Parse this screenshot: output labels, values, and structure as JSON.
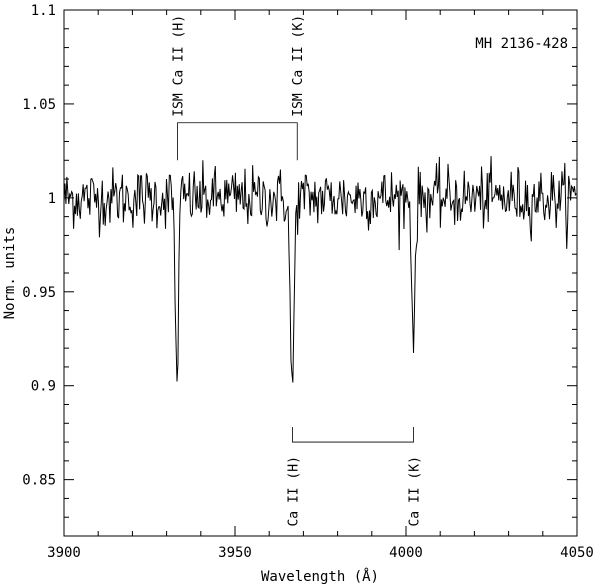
{
  "chart_data": {
    "type": "line",
    "object_label": "MH 2136-428",
    "xlabel": "Wavelength (Å)",
    "ylabel": "Norm. units",
    "xlim": [
      3900,
      4050
    ],
    "ylim": [
      0.82,
      1.1
    ],
    "xticks": [
      3900,
      3950,
      4000,
      4050
    ],
    "xtick_labels": [
      "3900",
      "3950",
      "4000",
      "4050"
    ],
    "yticks": [
      0.85,
      0.9,
      0.95,
      1,
      1.05,
      1.1
    ],
    "ytick_labels": [
      "0.85",
      "0.9",
      "0.95",
      "1",
      "1.05",
      "1.1"
    ],
    "series": [
      {
        "name": "",
        "continuum": 1.0,
        "noise_sigma": 0.008,
        "absorption_lines": [
          {
            "center": 3933.0,
            "depth": 0.098,
            "sigma": 0.45
          },
          {
            "center": 3966.7,
            "depth": 0.104,
            "sigma": 0.55
          },
          {
            "center": 4002.2,
            "depth": 0.072,
            "sigma": 0.5
          }
        ]
      }
    ],
    "annotations": [
      {
        "label": "ISM Ca II (H)",
        "x": 3933.2,
        "line_group": "ism"
      },
      {
        "label": "ISM Ca II (K)",
        "x": 3968.2,
        "line_group": "ism"
      },
      {
        "label": "Ca II (H)",
        "x": 3966.8,
        "line_group": "stellar"
      },
      {
        "label": "Ca II (K)",
        "x": 4002.2,
        "line_group": "stellar"
      }
    ],
    "brackets": {
      "ism": {
        "x1": 3933.2,
        "x2": 3968.2,
        "y": 1.04,
        "y_tick": 1.02
      },
      "stellar": {
        "x1": 3966.8,
        "x2": 4002.2,
        "y": 0.87,
        "y_tick": 0.878
      }
    },
    "grid": false
  }
}
